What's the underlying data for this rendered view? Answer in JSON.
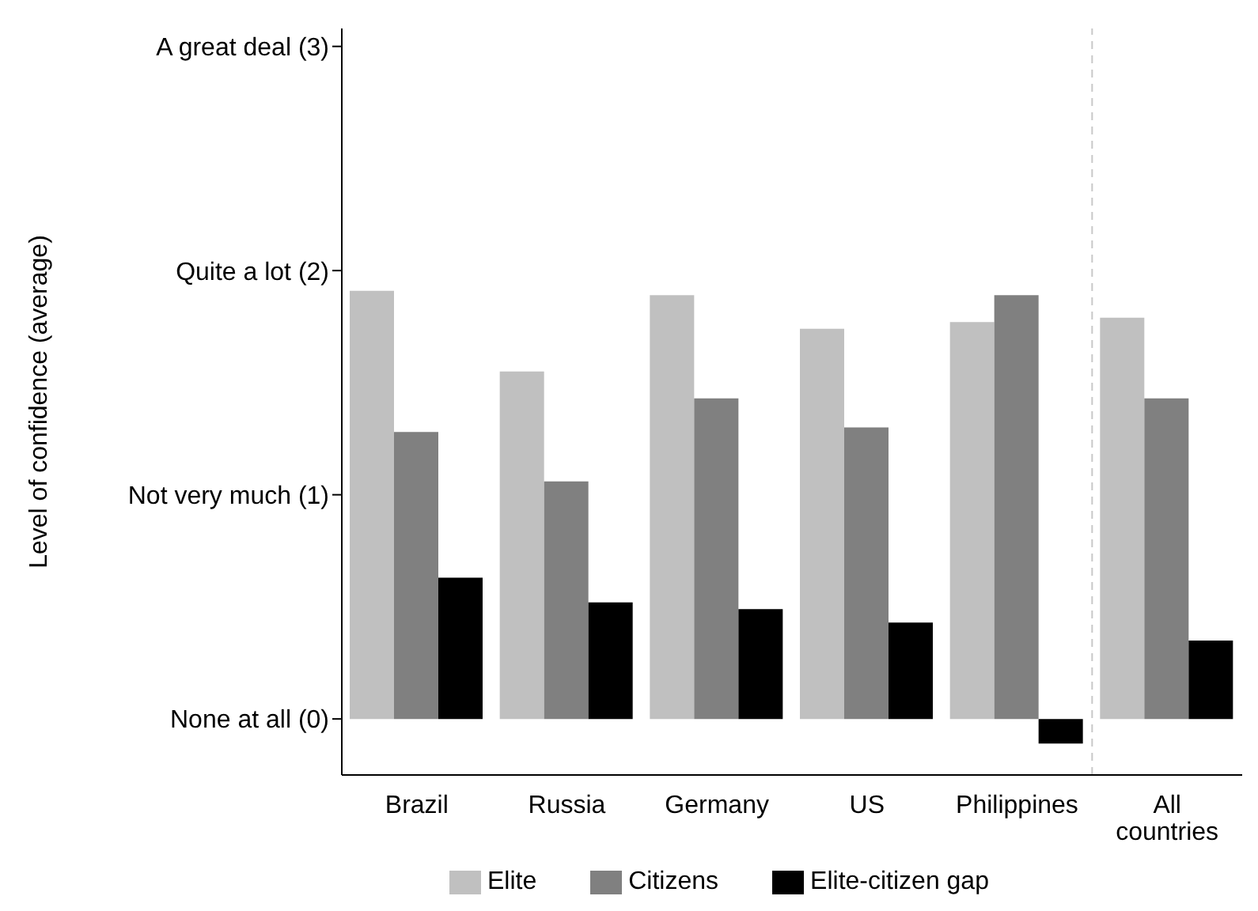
{
  "chart_data": {
    "type": "bar",
    "ylabel": "Level of confidence (average)",
    "categories": [
      "Brazil",
      "Russia",
      "Germany",
      "US",
      "Philippines",
      "All countries"
    ],
    "series": [
      {
        "name": "Elite",
        "color": "#c0c0c0",
        "values": [
          1.91,
          1.55,
          1.89,
          1.74,
          1.77,
          1.79
        ]
      },
      {
        "name": "Citizens",
        "color": "#808080",
        "values": [
          1.28,
          1.06,
          1.43,
          1.3,
          1.89,
          1.43
        ]
      },
      {
        "name": "Elite-citizen gap",
        "color": "#000000",
        "values": [
          0.63,
          0.52,
          0.49,
          0.43,
          -0.11,
          0.35
        ]
      }
    ],
    "ylim": [
      -0.25,
      3.08
    ],
    "yticks": [
      {
        "value": 0,
        "label": "None at all (0)"
      },
      {
        "value": 1,
        "label": "Not very much (1)"
      },
      {
        "value": 2,
        "label": "Quite a lot (2)"
      },
      {
        "value": 3,
        "label": "A great deal (3)"
      }
    ],
    "legend": "bottom"
  }
}
